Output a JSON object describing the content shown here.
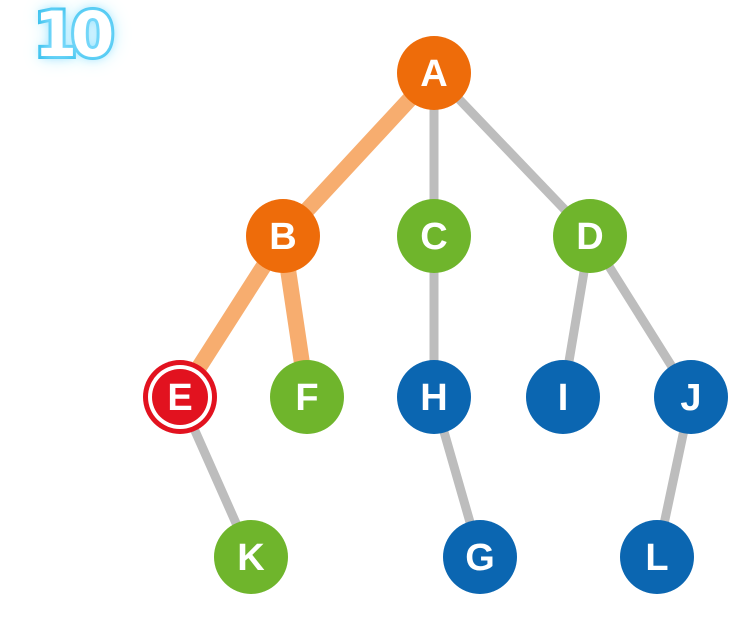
{
  "step_badge": "10",
  "colors": {
    "orange": "#ee6c0a",
    "green": "#6fb52c",
    "blue": "#0b66b1",
    "red": "#e2121f",
    "edge_gray": "#bdbdbd",
    "edge_path": "#f7ad6f"
  },
  "nodes": [
    {
      "id": "A",
      "label": "A",
      "state": "orange"
    },
    {
      "id": "B",
      "label": "B",
      "state": "orange"
    },
    {
      "id": "C",
      "label": "C",
      "state": "green"
    },
    {
      "id": "D",
      "label": "D",
      "state": "green"
    },
    {
      "id": "E",
      "label": "E",
      "state": "red-current"
    },
    {
      "id": "F",
      "label": "F",
      "state": "green"
    },
    {
      "id": "H",
      "label": "H",
      "state": "blue"
    },
    {
      "id": "I",
      "label": "I",
      "state": "blue"
    },
    {
      "id": "J",
      "label": "J",
      "state": "blue"
    },
    {
      "id": "K",
      "label": "K",
      "state": "green"
    },
    {
      "id": "G",
      "label": "G",
      "state": "blue"
    },
    {
      "id": "L",
      "label": "L",
      "state": "blue"
    }
  ],
  "edges": [
    {
      "from": "A",
      "to": "B",
      "state": "path"
    },
    {
      "from": "A",
      "to": "C",
      "state": "normal"
    },
    {
      "from": "A",
      "to": "D",
      "state": "normal"
    },
    {
      "from": "B",
      "to": "E",
      "state": "path"
    },
    {
      "from": "B",
      "to": "F",
      "state": "path"
    },
    {
      "from": "C",
      "to": "H",
      "state": "normal"
    },
    {
      "from": "D",
      "to": "I",
      "state": "normal"
    },
    {
      "from": "D",
      "to": "J",
      "state": "normal"
    },
    {
      "from": "E",
      "to": "K",
      "state": "normal"
    },
    {
      "from": "H",
      "to": "G",
      "state": "normal"
    },
    {
      "from": "J",
      "to": "L",
      "state": "normal"
    }
  ]
}
